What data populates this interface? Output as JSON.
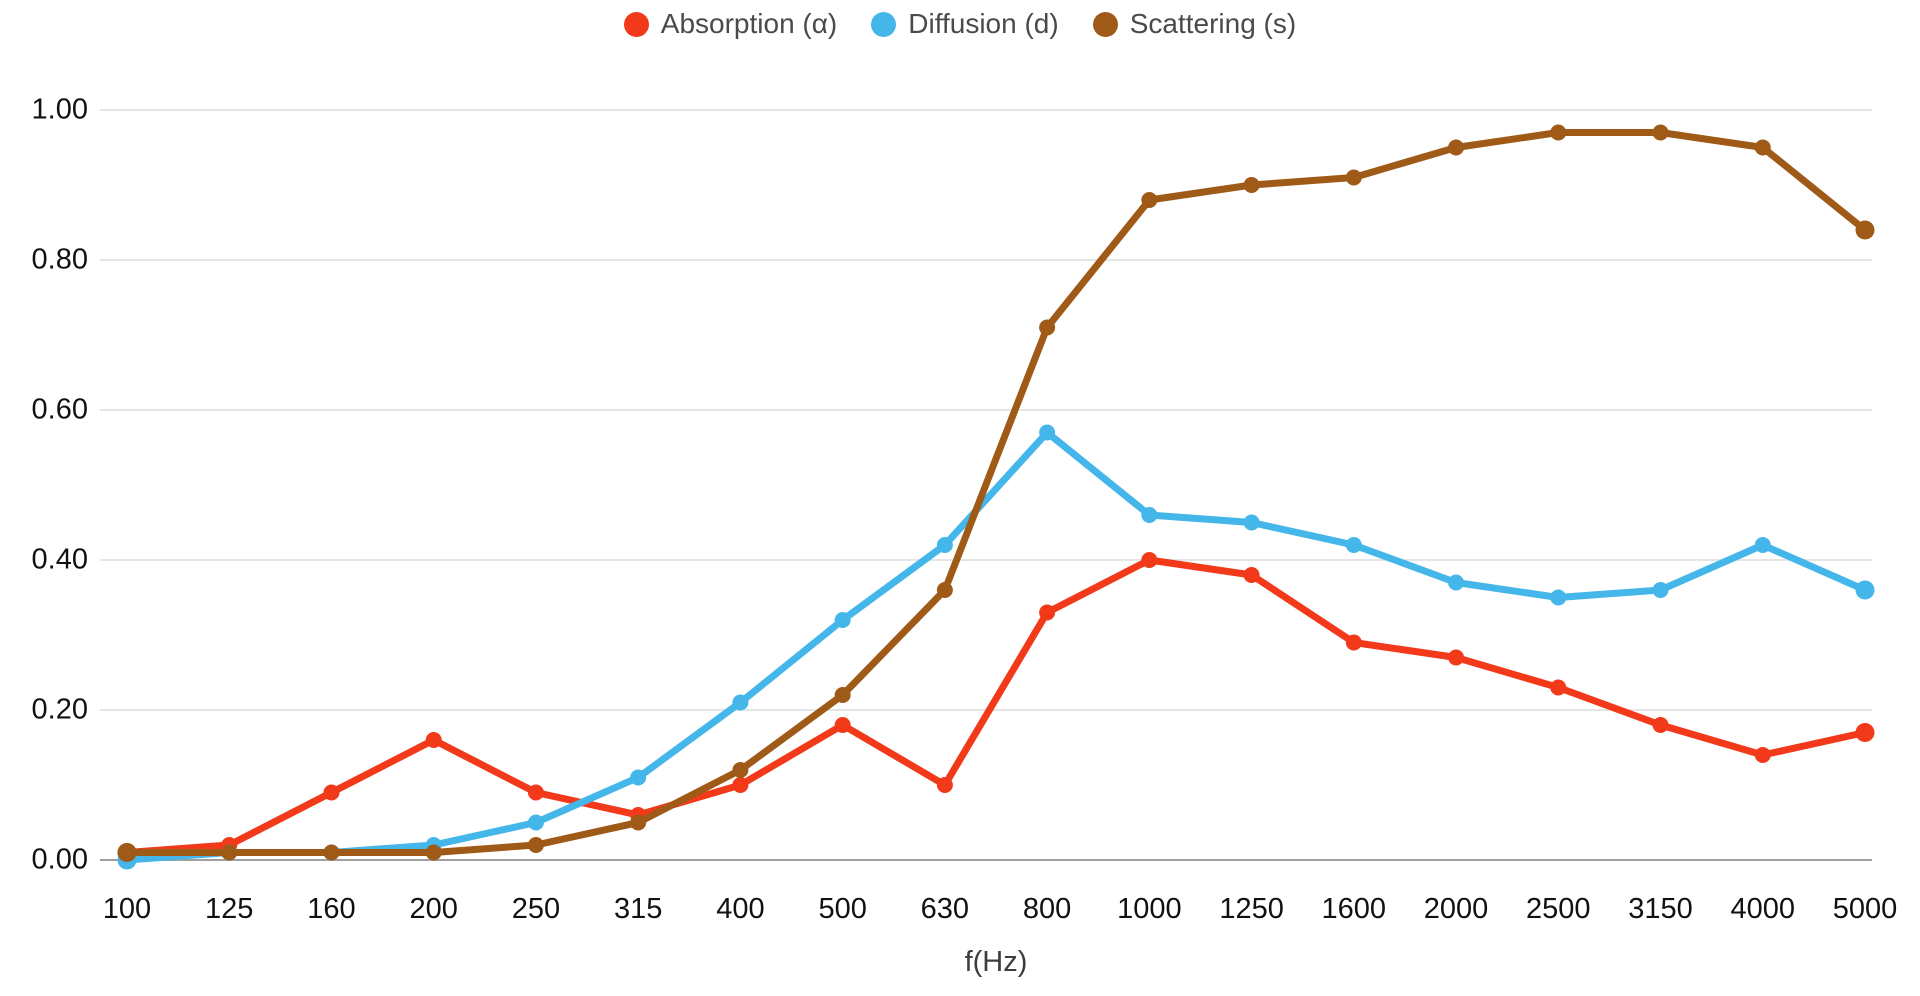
{
  "chart_data": {
    "type": "line",
    "title": "",
    "xlabel": "f(Hz)",
    "ylabel": "",
    "ylim": [
      0,
      1
    ],
    "y_ticks": [
      "0.00",
      "0.20",
      "0.40",
      "0.60",
      "0.80",
      "1.00"
    ],
    "grid": "horizontal-major-only",
    "legend_position": "top-center",
    "categories": [
      "100",
      "125",
      "160",
      "200",
      "250",
      "315",
      "400",
      "500",
      "630",
      "800",
      "1000",
      "1250",
      "1600",
      "2000",
      "2500",
      "3150",
      "4000",
      "5000"
    ],
    "series": [
      {
        "name": "Absorption (α)",
        "color": "#f23919",
        "values": [
          0.01,
          0.02,
          0.09,
          0.16,
          0.09,
          0.06,
          0.1,
          0.18,
          0.1,
          0.33,
          0.4,
          0.38,
          0.29,
          0.27,
          0.23,
          0.18,
          0.14,
          0.17
        ]
      },
      {
        "name": "Diffusion (d)",
        "color": "#45b6e9",
        "values": [
          0.0,
          0.01,
          0.01,
          0.02,
          0.05,
          0.11,
          0.21,
          0.32,
          0.42,
          0.57,
          0.46,
          0.45,
          0.42,
          0.37,
          0.35,
          0.36,
          0.42,
          0.36
        ]
      },
      {
        "name": "Scattering (s)",
        "color": "#a05a18",
        "values": [
          0.01,
          0.01,
          0.01,
          0.01,
          0.02,
          0.05,
          0.12,
          0.22,
          0.36,
          0.71,
          0.88,
          0.9,
          0.91,
          0.95,
          0.97,
          0.97,
          0.95,
          0.84
        ]
      }
    ],
    "colors": {
      "grid_line": "#e5e5e5",
      "axis_line": "#a0a0a0",
      "tick_text": "#111111",
      "axis_title_text": "#3d3d3d",
      "legend_text": "#4a4a4a",
      "background": "#ffffff"
    }
  }
}
